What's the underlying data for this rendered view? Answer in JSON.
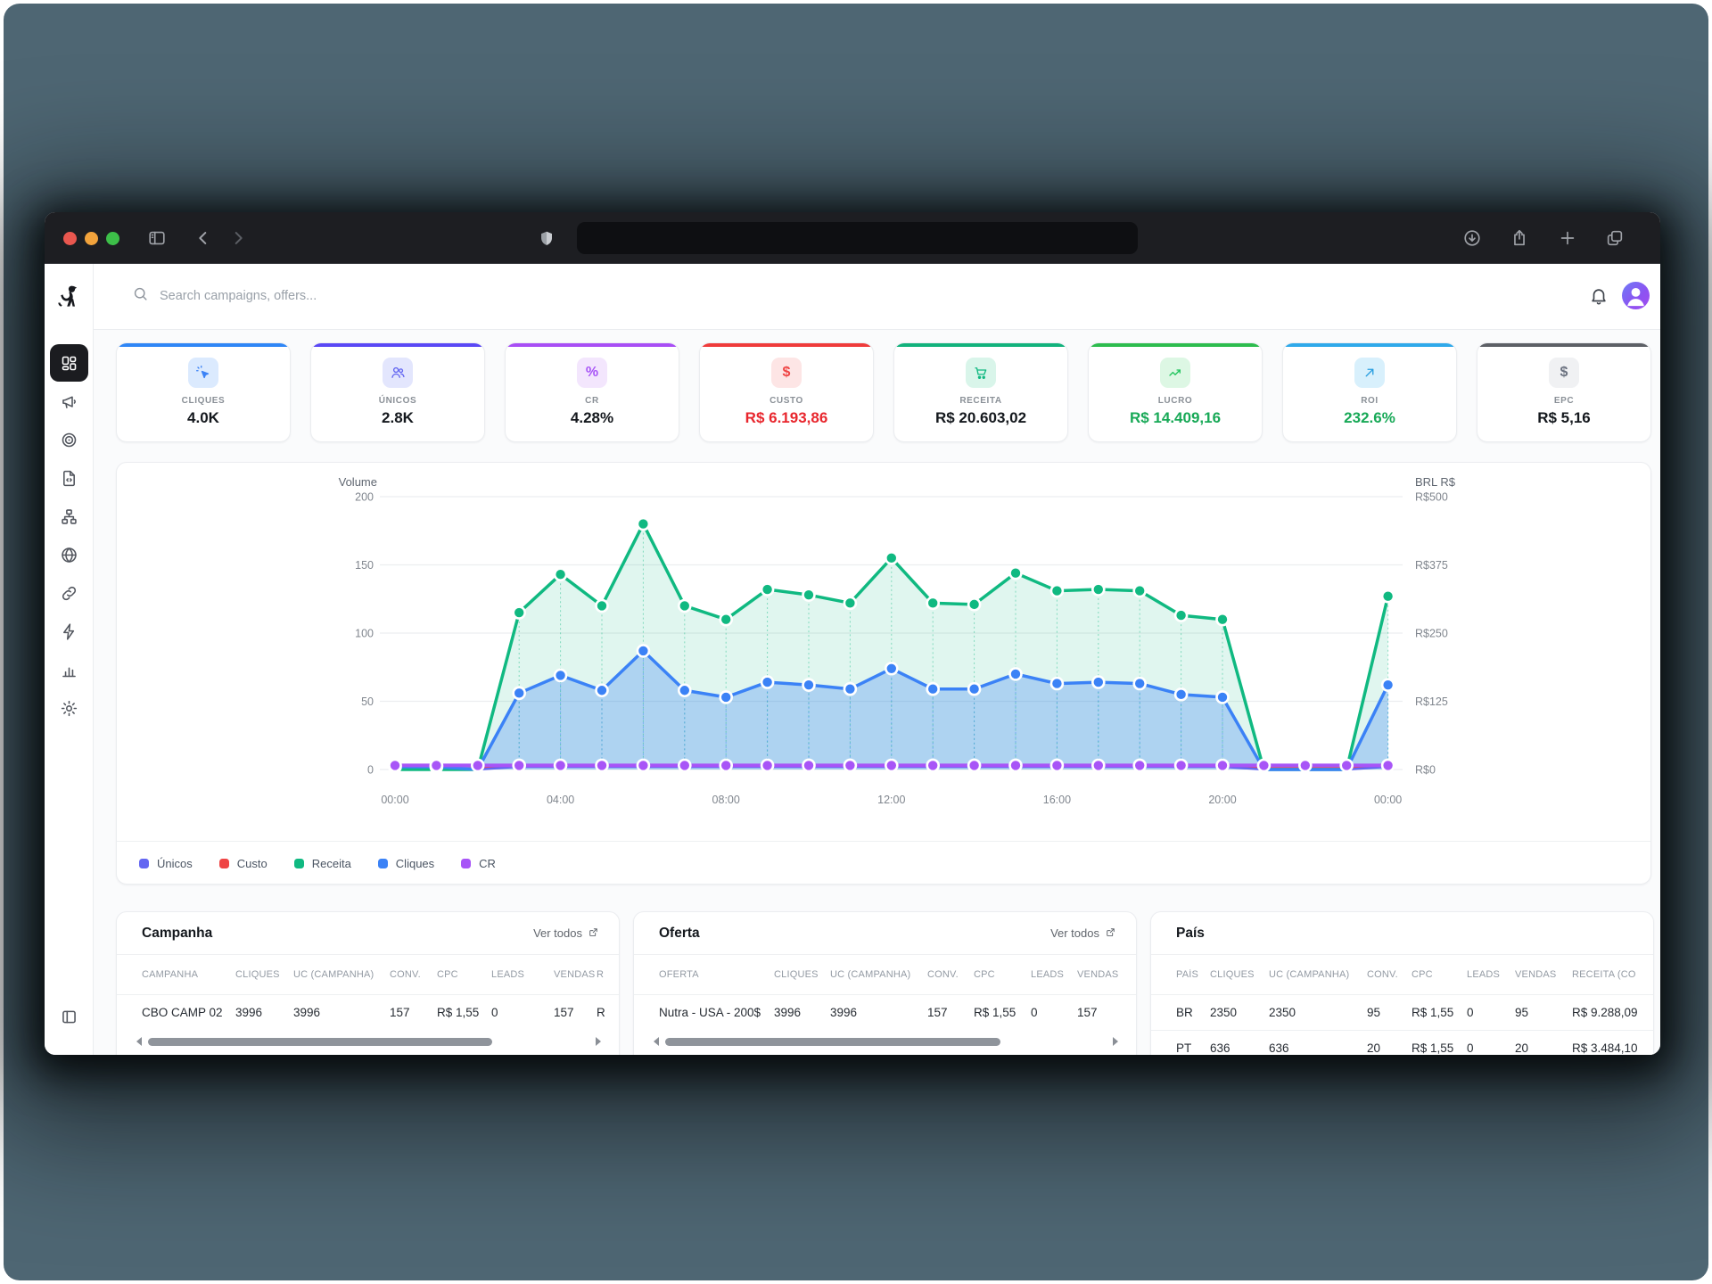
{
  "browser": {
    "traffic_lights": [
      "#e9574f",
      "#f2a33c",
      "#3dbf49"
    ],
    "url_value": "",
    "left_buttons": [
      "sidebar-toggle-icon",
      "chevron-left-icon",
      "chevron-right-icon"
    ],
    "right_buttons": [
      "download-icon",
      "share-icon",
      "plus-icon",
      "tabs-icon"
    ]
  },
  "header": {
    "search_placeholder": "Search campaigns, offers...",
    "logo": "dog-logo",
    "bell": "bell-icon",
    "avatar": "user-avatar"
  },
  "sidebar": {
    "items": [
      {
        "name": "dashboard",
        "icon": "dashboard-icon",
        "active": true
      },
      {
        "name": "campaigns",
        "icon": "megaphone-icon",
        "active": false
      },
      {
        "name": "offers",
        "icon": "target-icon",
        "active": false
      },
      {
        "name": "pages",
        "icon": "file-code-icon",
        "active": false
      },
      {
        "name": "funnels",
        "icon": "sitemap-icon",
        "active": false
      },
      {
        "name": "domains",
        "icon": "globe-icon",
        "active": false
      },
      {
        "name": "links",
        "icon": "link-icon",
        "active": false
      },
      {
        "name": "automation",
        "icon": "zap-icon",
        "active": false
      },
      {
        "name": "reports",
        "icon": "bar-chart-icon",
        "active": false
      },
      {
        "name": "settings",
        "icon": "gear-icon",
        "active": false
      }
    ],
    "bottom_icon": "panel-toggle-icon"
  },
  "kpis": [
    {
      "label": "CLIQUES",
      "value": "4.0K",
      "accent": "#2f86f6",
      "chip_bg": "#dbeafe",
      "icon": "pointer-click",
      "icon_color": "#3b82f6",
      "value_color": "#14181d"
    },
    {
      "label": "ÚNICOS",
      "value": "2.8K",
      "accent": "#5a48f5",
      "chip_bg": "#e3e6fd",
      "icon": "users",
      "icon_color": "#6366f1",
      "value_color": "#14181d"
    },
    {
      "label": "CR",
      "value": "4.28%",
      "accent": "#a84ef5",
      "chip_bg": "#f3e6fd",
      "icon": "percent-glyph",
      "icon_color": "#a855f7",
      "value_color": "#14181d"
    },
    {
      "label": "CUSTO",
      "value": "R$ 6.193,86",
      "accent": "#ef3b3b",
      "chip_bg": "#fde5e5",
      "icon": "dollar-glyph",
      "icon_color": "#ef4444",
      "value_color": "#e8262d"
    },
    {
      "label": "RECEITA",
      "value": "R$ 20.603,02",
      "accent": "#12b27c",
      "chip_bg": "#d9f5ea",
      "icon": "cart",
      "icon_color": "#10b981",
      "value_color": "#14181d"
    },
    {
      "label": "LUCRO",
      "value": "R$ 14.409,16",
      "accent": "#2dbc4e",
      "chip_bg": "#ddf7e4",
      "icon": "trend-up",
      "icon_color": "#22c55e",
      "value_color": "#18a957"
    },
    {
      "label": "ROI",
      "value": "232.6%",
      "accent": "#2fa9ea",
      "chip_bg": "#d8f0fc",
      "icon": "arrow-up-right",
      "icon_color": "#2b9fe0",
      "value_color": "#18a957"
    },
    {
      "label": "EPC",
      "value": "R$ 5,16",
      "accent": "#5d6066",
      "chip_bg": "#f0f1f3",
      "icon": "dollar-glyph",
      "icon_color": "#6b7280",
      "value_color": "#14181d"
    }
  ],
  "chart_data": {
    "type": "line",
    "left_axis": {
      "title": "Volume",
      "ticks": [
        200,
        150,
        100,
        50,
        0
      ],
      "range": [
        0,
        200
      ]
    },
    "right_axis": {
      "title": "BRL R$",
      "ticks": [
        "R$500",
        "R$375",
        "R$250",
        "R$125",
        "R$0"
      ]
    },
    "x_tick_labels": [
      "00:00",
      "04:00",
      "08:00",
      "12:00",
      "16:00",
      "20:00",
      "00:00"
    ],
    "x_tick_indices": [
      0,
      4,
      8,
      12,
      16,
      20,
      24
    ],
    "grid": true,
    "legend_position": "bottom",
    "series": [
      {
        "name": "Únicos",
        "color": "#6366f1",
        "area": false,
        "dots": false,
        "values": [
          2,
          2,
          0,
          2,
          2,
          2,
          2,
          2,
          2,
          2,
          2,
          2,
          2,
          2,
          2,
          2,
          2,
          2,
          2,
          2,
          2,
          0,
          0,
          0,
          2
        ]
      },
      {
        "name": "Custo",
        "color": "#ef4444",
        "area": false,
        "dots": false,
        "values": [
          1,
          1,
          1,
          2.2,
          2.2,
          2.2,
          2.2,
          2.2,
          2.2,
          2.2,
          2.2,
          2.2,
          2.2,
          2.2,
          2.2,
          2.2,
          2.2,
          2.2,
          2.2,
          2.2,
          2.2,
          1,
          1,
          1,
          2.2
        ]
      },
      {
        "name": "Receita",
        "color": "#10b981",
        "area": true,
        "dots": true,
        "values": [
          0,
          0,
          0,
          115,
          143,
          120,
          180,
          120,
          110,
          132,
          128,
          122,
          155,
          122,
          121,
          144,
          131,
          132,
          131,
          113,
          110,
          0,
          0,
          0,
          127
        ]
      },
      {
        "name": "Cliques",
        "color": "#3b82f6",
        "area": true,
        "dots": true,
        "values": [
          2,
          2,
          0,
          56,
          69,
          58,
          87,
          58,
          53,
          64,
          62,
          59,
          74,
          59,
          59,
          70,
          63,
          64,
          63,
          55,
          53,
          0,
          0,
          0,
          62
        ]
      },
      {
        "name": "CR",
        "color": "#a855f7",
        "area": false,
        "dots": "all",
        "values": [
          3,
          3,
          3,
          3,
          3,
          3,
          3,
          3,
          3,
          3,
          3,
          3,
          3,
          3,
          3,
          3,
          3,
          3,
          3,
          3,
          3,
          3,
          3,
          3,
          3
        ]
      }
    ]
  },
  "tables": [
    {
      "key": "campanha",
      "title": "Campanha",
      "link": "Ver todos",
      "has_link": true,
      "has_scrollbar": true,
      "thumb_pct": 78,
      "headers": [
        "CAMPANHA",
        "CLIQUES",
        "UC (CAMPANHA)",
        "CONV.",
        "CPC",
        "LEADS",
        "VENDAS",
        "R"
      ],
      "rows": [
        [
          "CBO CAMP 02",
          "3996",
          "3996",
          "157",
          "R$ 1,55",
          "0",
          "157",
          "R"
        ]
      ]
    },
    {
      "key": "oferta",
      "title": "Oferta",
      "link": "Ver todos",
      "has_link": true,
      "has_scrollbar": true,
      "thumb_pct": 76,
      "headers": [
        "OFERTA",
        "CLIQUES",
        "UC (CAMPANHA)",
        "CONV.",
        "CPC",
        "LEADS",
        "VENDAS"
      ],
      "rows": [
        [
          "Nutra - USA - 200$",
          "3996",
          "3996",
          "157",
          "R$ 1,55",
          "0",
          "157"
        ]
      ]
    },
    {
      "key": "pais",
      "title": "País",
      "link": "",
      "has_link": false,
      "has_scrollbar": false,
      "thumb_pct": 0,
      "headers": [
        "PAÍS",
        "CLIQUES",
        "UC (CAMPANHA)",
        "CONV.",
        "CPC",
        "LEADS",
        "VENDAS",
        "RECEITA (CO"
      ],
      "rows": [
        [
          "BR",
          "2350",
          "2350",
          "95",
          "R$ 1,55",
          "0",
          "95",
          "R$ 9.288,09"
        ],
        [
          "PT",
          "636",
          "636",
          "20",
          "R$ 1,55",
          "0",
          "20",
          "R$ 3.484,10"
        ]
      ]
    }
  ]
}
